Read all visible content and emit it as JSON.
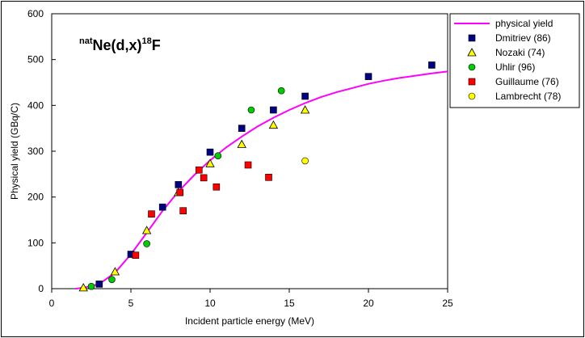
{
  "chart_data": {
    "type": "scatter",
    "xlabel": "Incident particle energy (MeV)",
    "ylabel": "Physical yield (GBq/C)",
    "xlim": [
      0,
      25
    ],
    "ylim": [
      0,
      600
    ],
    "xticks": [
      0,
      5,
      10,
      15,
      20,
      25
    ],
    "yticks": [
      0,
      100,
      200,
      300,
      400,
      500,
      600
    ],
    "grid": false,
    "legend_position": "right",
    "annotation": {
      "prefix_sup": "nat",
      "main": "Ne(d,x)",
      "sup": "18",
      "suffix": "F"
    },
    "curve": {
      "name": "physical yield",
      "color": "#ff00ff",
      "x": [
        1.5,
        2,
        3,
        4,
        5,
        6,
        7,
        8,
        9,
        10,
        11,
        12,
        13,
        14,
        15,
        16,
        17,
        18,
        19,
        20,
        21,
        22,
        23,
        24,
        25
      ],
      "y": [
        0,
        2,
        10,
        35,
        75,
        122,
        170,
        212,
        248,
        280,
        308,
        332,
        354,
        373,
        390,
        405,
        418,
        429,
        438,
        447,
        454,
        460,
        465,
        470,
        474
      ]
    },
    "series": [
      {
        "name": "Dmitriev (86)",
        "marker": "square",
        "color": "#000080",
        "points": [
          [
            3,
            10
          ],
          [
            5,
            75
          ],
          [
            7,
            178
          ],
          [
            8,
            227
          ],
          [
            10,
            298
          ],
          [
            12,
            350
          ],
          [
            14,
            390
          ],
          [
            16,
            420
          ],
          [
            20,
            463
          ],
          [
            24,
            488
          ]
        ]
      },
      {
        "name": "Nozaki (74)",
        "marker": "triangle",
        "color": "#ffff00",
        "points": [
          [
            2,
            2
          ],
          [
            4,
            37
          ],
          [
            6,
            127
          ],
          [
            8,
            210
          ],
          [
            10,
            273
          ],
          [
            12,
            315
          ],
          [
            14,
            357
          ],
          [
            16,
            390
          ]
        ]
      },
      {
        "name": "Uhlir (96)",
        "marker": "circle",
        "color": "#00cc00",
        "points": [
          [
            2.5,
            5
          ],
          [
            3.8,
            20
          ],
          [
            6,
            98
          ],
          [
            10.5,
            290
          ],
          [
            12.6,
            390
          ],
          [
            14.5,
            432
          ]
        ]
      },
      {
        "name": "Guillaume (76)",
        "marker": "square",
        "color": "#ff0000",
        "points": [
          [
            5.3,
            73
          ],
          [
            6.3,
            163
          ],
          [
            8.1,
            210
          ],
          [
            8.3,
            170
          ],
          [
            9.3,
            259
          ],
          [
            9.6,
            242
          ],
          [
            10.4,
            222
          ],
          [
            12.4,
            270
          ],
          [
            13.7,
            243
          ]
        ]
      },
      {
        "name": "Lambrecht (78)",
        "marker": "circle",
        "color": "#ffff00",
        "points": [
          [
            16,
            279
          ]
        ]
      }
    ]
  }
}
